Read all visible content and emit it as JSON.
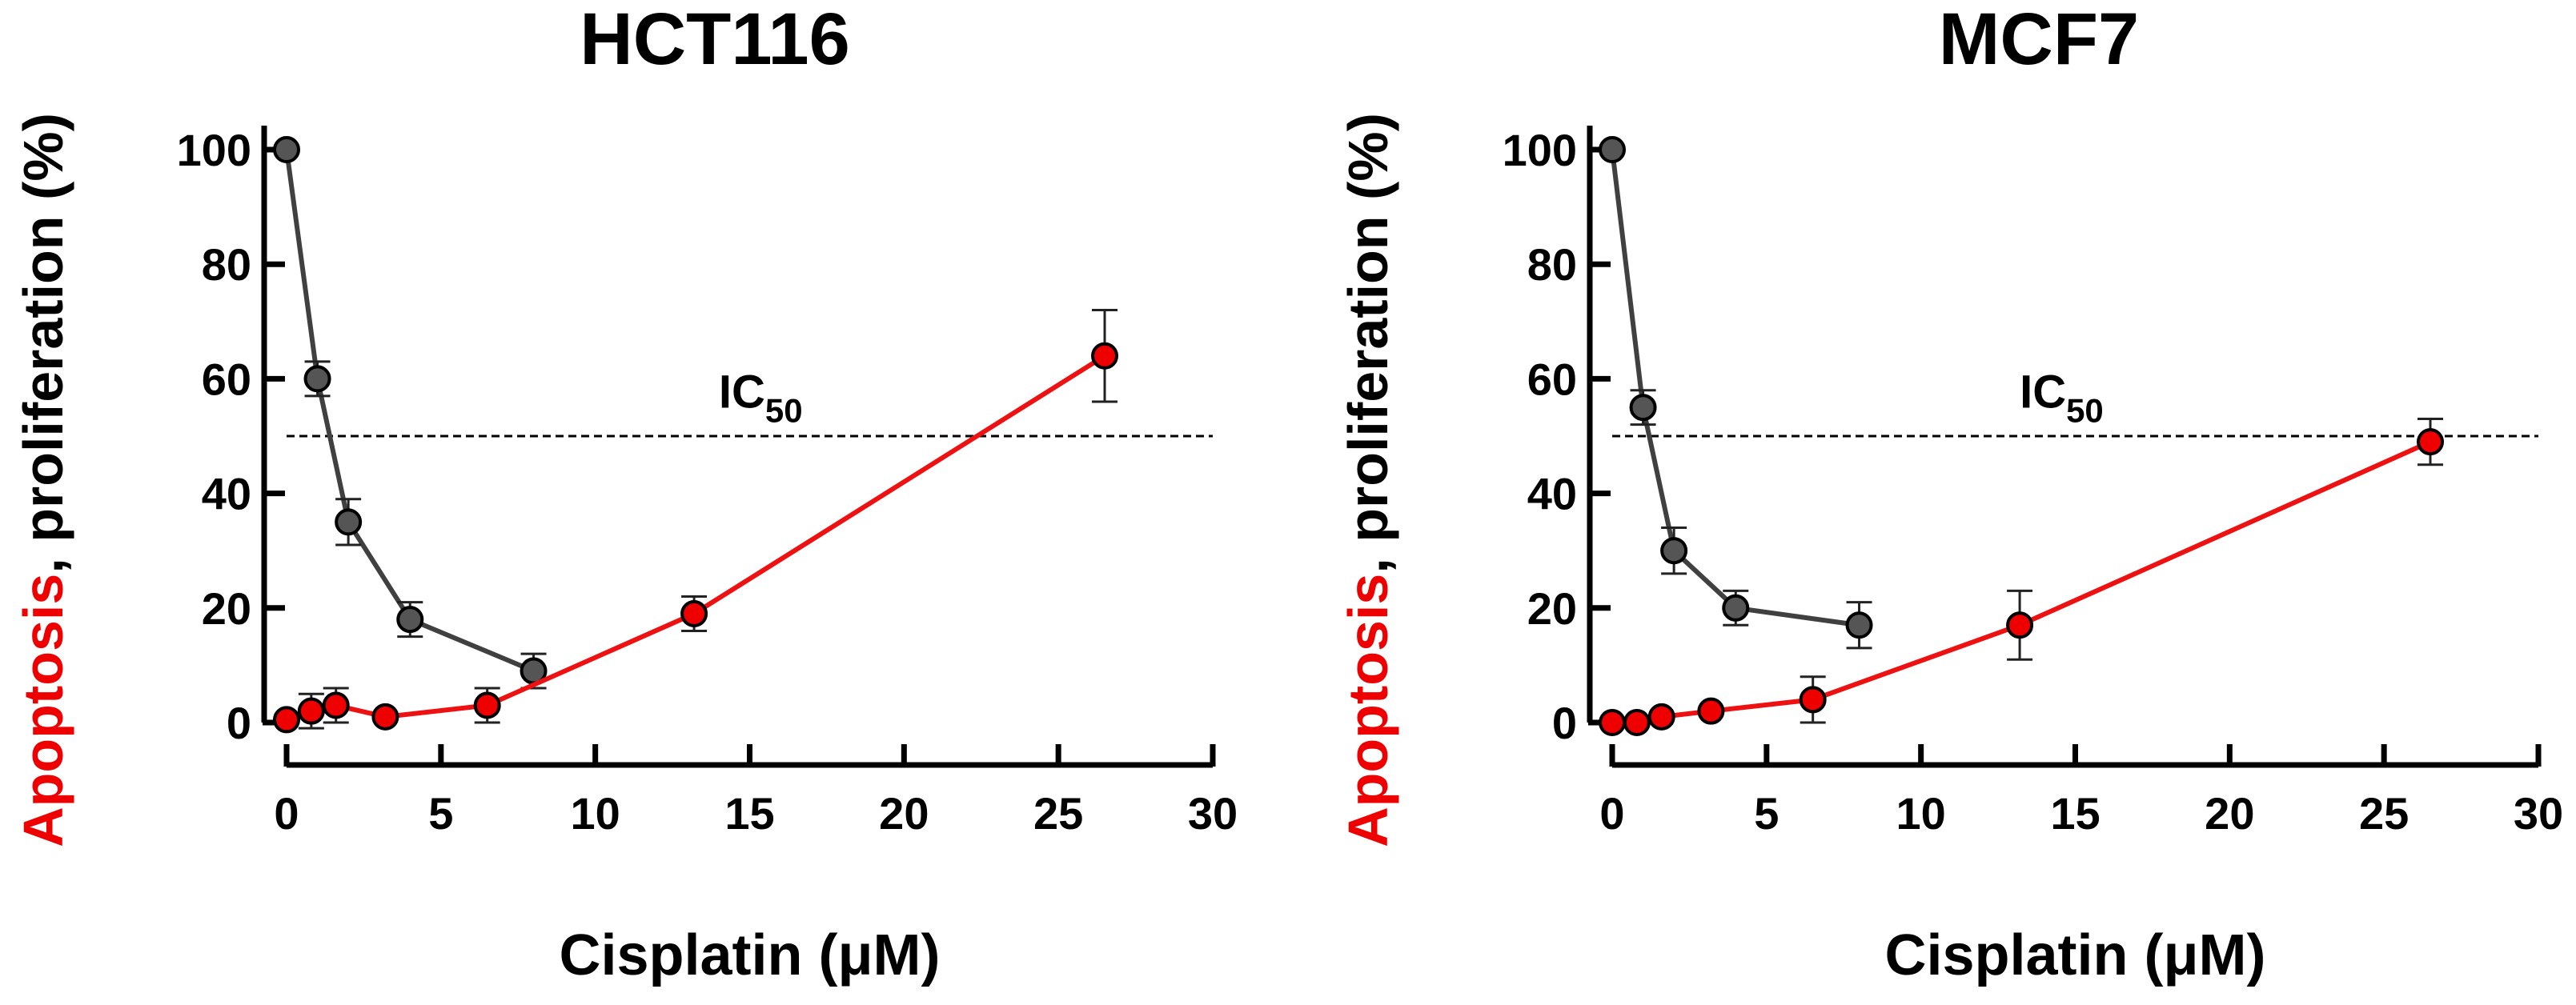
{
  "chart_data": [
    {
      "type": "line",
      "title": "HCT116",
      "xlabel_prefix": "Cisplatin (",
      "xlabel_unit": "μM",
      "xlabel_suffix": ")",
      "ylabel_red": "Apoptosis",
      "ylabel_rest": ", proliferation (%)",
      "xlim": [
        0,
        30
      ],
      "ylim": [
        0,
        100
      ],
      "xticks": [
        0,
        5,
        10,
        15,
        20,
        25,
        30
      ],
      "yticks": [
        0,
        20,
        40,
        60,
        80,
        100
      ],
      "reference_line": {
        "y": 50,
        "label_main": "IC",
        "label_sub": "50",
        "label_x": 14,
        "label_y": 58
      },
      "series": [
        {
          "name": "Proliferation",
          "marker_color": "#555555",
          "line_color": "#404040",
          "x": [
            0,
            1,
            2,
            4,
            8
          ],
          "y": [
            100,
            60,
            35,
            18,
            9
          ],
          "err": [
            0,
            3,
            4,
            3,
            3
          ]
        },
        {
          "name": "Apoptosis",
          "marker_color": "#ee0000",
          "line_color": "#ee1111",
          "x": [
            0,
            0.8,
            1.6,
            3.2,
            6.5,
            13.2,
            26.5
          ],
          "y": [
            0.5,
            2,
            3,
            1,
            3,
            19,
            64
          ],
          "err": [
            0,
            3,
            3,
            0,
            3,
            3,
            8
          ]
        }
      ]
    },
    {
      "type": "line",
      "title": "MCF7",
      "xlabel_prefix": "Cisplatin (",
      "xlabel_unit": "μM",
      "xlabel_suffix": ")",
      "ylabel_red": "Apoptosis",
      "ylabel_rest": ", proliferation (%)",
      "xlim": [
        0,
        30
      ],
      "ylim": [
        0,
        100
      ],
      "xticks": [
        0,
        5,
        10,
        15,
        20,
        25,
        30
      ],
      "yticks": [
        0,
        20,
        40,
        60,
        80,
        100
      ],
      "reference_line": {
        "y": 50,
        "label_main": "IC",
        "label_sub": "50",
        "label_x": 13.2,
        "label_y": 58
      },
      "series": [
        {
          "name": "Proliferation",
          "marker_color": "#555555",
          "line_color": "#404040",
          "x": [
            0,
            1,
            2,
            4,
            8
          ],
          "y": [
            100,
            55,
            30,
            20,
            17
          ],
          "err": [
            0,
            3,
            4,
            3,
            4
          ]
        },
        {
          "name": "Apoptosis",
          "marker_color": "#ee0000",
          "line_color": "#ee1111",
          "x": [
            0,
            0.8,
            1.6,
            3.2,
            6.5,
            13.2,
            26.5
          ],
          "y": [
            0,
            0,
            1,
            2,
            4,
            17,
            49
          ],
          "err": [
            0,
            0,
            0,
            0,
            4,
            6,
            4
          ]
        }
      ]
    }
  ]
}
